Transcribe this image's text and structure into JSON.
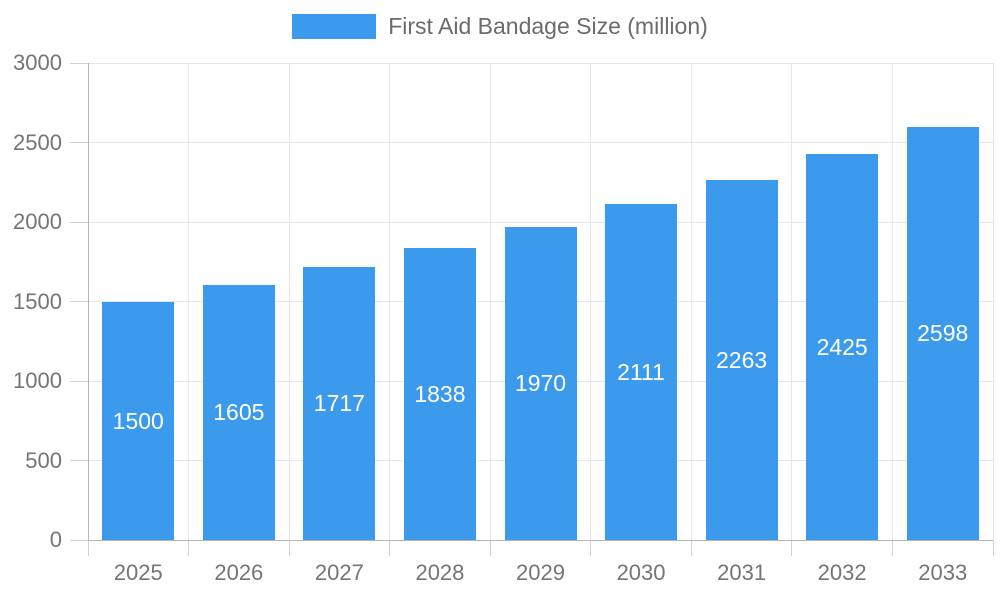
{
  "chart_data": {
    "type": "bar",
    "title": "First Aid Bandage Size (million)",
    "categories": [
      "2025",
      "2026",
      "2027",
      "2028",
      "2029",
      "2030",
      "2031",
      "2032",
      "2033"
    ],
    "values": [
      1500,
      1605,
      1717,
      1838,
      1970,
      2111,
      2263,
      2425,
      2598
    ],
    "series_name": "First Aid Bandage Size (million)",
    "xlabel": "",
    "ylabel": "",
    "ylim": [
      0,
      3000
    ],
    "ytick_step": 500,
    "yticks": [
      "0",
      "500",
      "1000",
      "1500",
      "2000",
      "2500",
      "3000"
    ],
    "grid": "on",
    "legend_position": "top",
    "bar_labels_visible": true,
    "colors": {
      "bar": "#3b9aec",
      "bar_label_text": "#ffffff",
      "grid_line": "#e6e6e6",
      "axis_line": "#b4b4b4",
      "tick_mark": "#d2d2d2",
      "tick_text": "#757575",
      "legend_text": "#6b6b6b"
    }
  }
}
